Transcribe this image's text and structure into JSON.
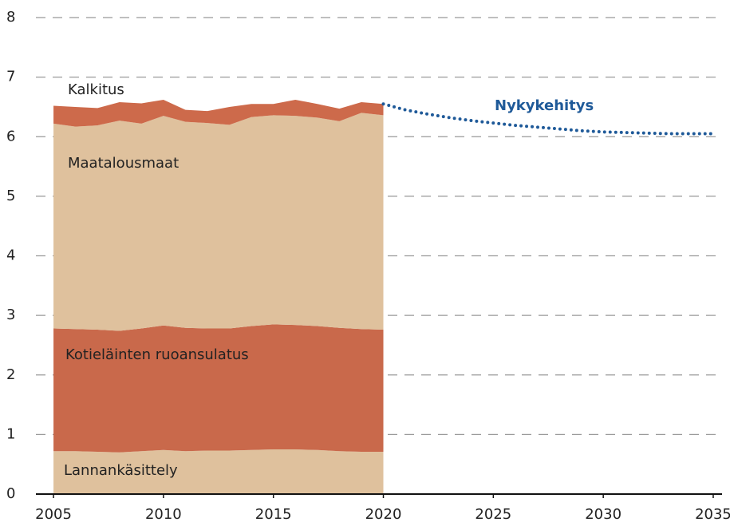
{
  "chart_data": {
    "type": "stacked_area",
    "x": [
      2005,
      2006,
      2007,
      2008,
      2009,
      2010,
      2011,
      2012,
      2013,
      2014,
      2015,
      2016,
      2017,
      2018,
      2019,
      2020
    ],
    "series": [
      {
        "name": "Lannankäsittely",
        "color": "#dfc19d",
        "values": [
          0.72,
          0.72,
          0.71,
          0.7,
          0.72,
          0.74,
          0.72,
          0.73,
          0.73,
          0.74,
          0.75,
          0.75,
          0.74,
          0.72,
          0.71,
          0.71
        ]
      },
      {
        "name": "Kotieläinten ruoansulatus",
        "color": "#c9694b",
        "values": [
          2.06,
          2.05,
          2.05,
          2.04,
          2.06,
          2.09,
          2.07,
          2.05,
          2.05,
          2.08,
          2.1,
          2.09,
          2.08,
          2.07,
          2.06,
          2.05
        ]
      },
      {
        "name": "Maatalousmaat",
        "color": "#dfc19d",
        "values": [
          3.44,
          3.4,
          3.43,
          3.53,
          3.44,
          3.52,
          3.46,
          3.45,
          3.42,
          3.51,
          3.51,
          3.51,
          3.5,
          3.47,
          3.63,
          3.6
        ]
      },
      {
        "name": "Kalkitus",
        "color": "#cd6a4b",
        "values": [
          0.3,
          0.33,
          0.29,
          0.31,
          0.34,
          0.27,
          0.2,
          0.2,
          0.3,
          0.22,
          0.19,
          0.27,
          0.23,
          0.21,
          0.18,
          0.19
        ]
      }
    ],
    "projection": {
      "name": "Nykykehitys",
      "color": "#1f5a99",
      "x": [
        2020,
        2021,
        2022,
        2023,
        2024,
        2025,
        2026,
        2027,
        2028,
        2029,
        2030,
        2031,
        2032,
        2033,
        2034,
        2035
      ],
      "values": [
        6.55,
        6.45,
        6.38,
        6.32,
        6.27,
        6.23,
        6.19,
        6.16,
        6.13,
        6.1,
        6.08,
        6.07,
        6.06,
        6.05,
        6.05,
        6.05
      ]
    },
    "xlim": [
      2004.2,
      2035.4
    ],
    "xticks": [
      2005,
      2010,
      2015,
      2020,
      2025,
      2030,
      2035
    ],
    "ylim": [
      0,
      8
    ],
    "yticks": [
      0,
      1,
      2,
      3,
      4,
      5,
      6,
      7,
      8
    ],
    "grid": true
  }
}
